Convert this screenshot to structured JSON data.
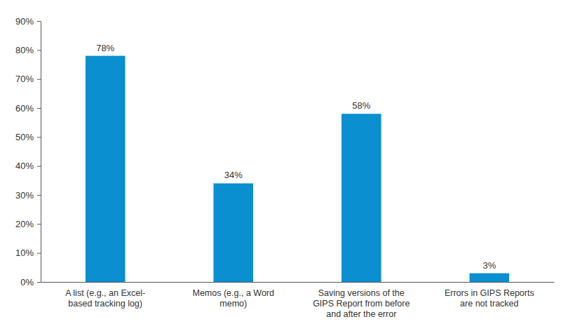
{
  "chart_data": {
    "type": "bar",
    "categories": [
      "A list (e.g., an Excel-based tracking log)",
      "Memos (e.g., a Word memo)",
      "Saving versions of the GIPS Report from before and after the error",
      "Errors in GIPS Reports are not tracked"
    ],
    "values": [
      78,
      34,
      58,
      3
    ],
    "value_labels": [
      "78%",
      "34%",
      "58%",
      "3%"
    ],
    "color": "#0a8fd0",
    "ylim": [
      0,
      90
    ],
    "yticks": [
      {
        "value": 0,
        "label": "0%"
      },
      {
        "value": 10,
        "label": "10%"
      },
      {
        "value": 20,
        "label": "20%"
      },
      {
        "value": 30,
        "label": "30%"
      },
      {
        "value": 40,
        "label": "40%"
      },
      {
        "value": 50,
        "label": "50%"
      },
      {
        "value": 60,
        "label": "60%"
      },
      {
        "value": 70,
        "label": "70%"
      },
      {
        "value": 80,
        "label": "80%"
      },
      {
        "value": 90,
        "label": "90%"
      }
    ],
    "grid": false,
    "data_labels": true
  }
}
